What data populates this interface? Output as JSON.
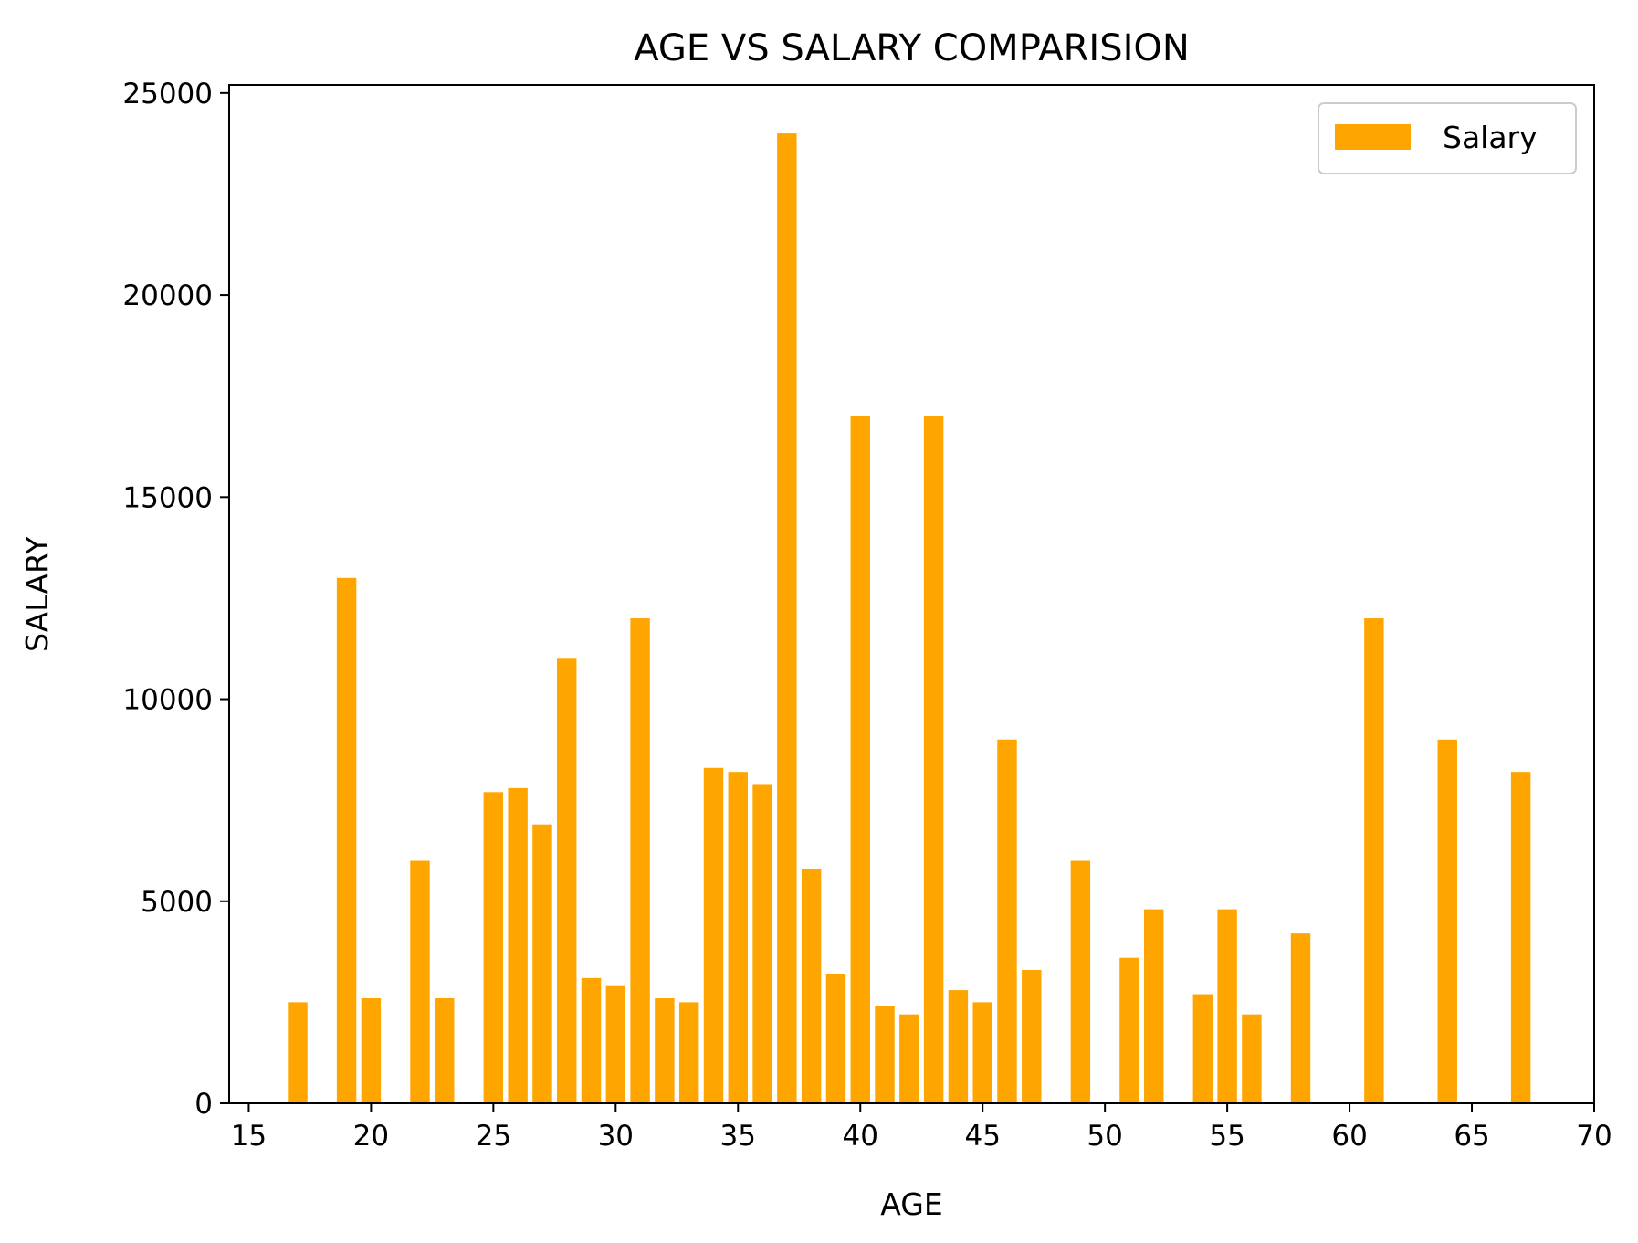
{
  "chart_data": {
    "type": "bar",
    "title": "AGE VS SALARY COMPARISION",
    "xlabel": "AGE",
    "ylabel": "SALARY",
    "xlim": [
      14.2,
      70
    ],
    "ylim": [
      0,
      25200
    ],
    "xticks": [
      15,
      20,
      25,
      30,
      35,
      40,
      45,
      50,
      55,
      60,
      65,
      70
    ],
    "yticks": [
      0,
      5000,
      10000,
      15000,
      20000,
      25000
    ],
    "grid": false,
    "legend_position": "top-right",
    "bar_width": 0.8,
    "series": [
      {
        "name": "Salary",
        "color": "#ffa500",
        "x": [
          17,
          19,
          20,
          22,
          23,
          25,
          26,
          27,
          28,
          29,
          30,
          31,
          32,
          33,
          34,
          35,
          36,
          37,
          38,
          39,
          40,
          41,
          42,
          43,
          44,
          45,
          46,
          47,
          49,
          51,
          52,
          54,
          55,
          56,
          58,
          61,
          64,
          67
        ],
        "values": [
          2500,
          13000,
          2600,
          6000,
          2600,
          7700,
          7800,
          6900,
          11000,
          3100,
          2900,
          12000,
          2600,
          2500,
          8300,
          8200,
          7900,
          24000,
          5800,
          3200,
          17000,
          2400,
          2200,
          17000,
          2800,
          2500,
          9000,
          3300,
          6000,
          3600,
          4800,
          2700,
          4800,
          2200,
          4200,
          12000,
          9000,
          8200
        ]
      }
    ]
  }
}
